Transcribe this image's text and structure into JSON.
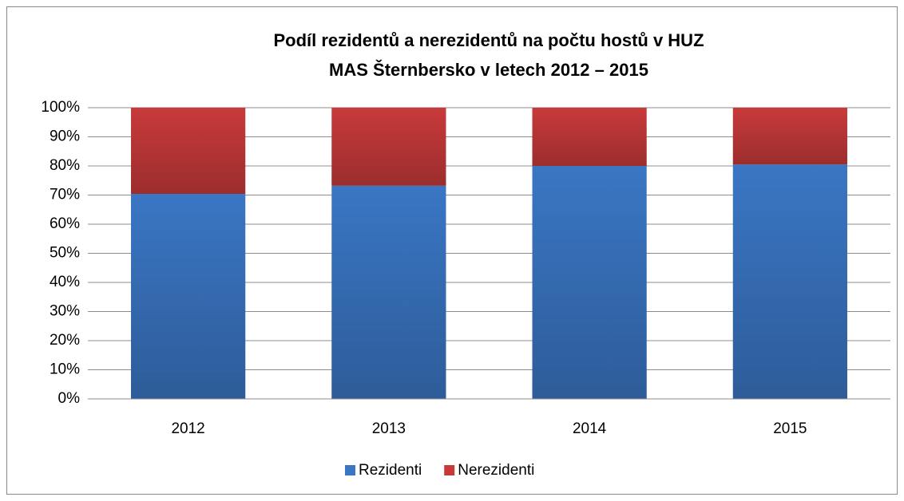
{
  "chart_data": {
    "type": "stacked_bar",
    "title": [
      "Podíl rezidentů a nerezidentů na počtu hostů v HUZ",
      "MAS Šternbersko v letech 2012 – 2015"
    ],
    "categories": [
      "2012",
      "2013",
      "2014",
      "2015"
    ],
    "series": [
      {
        "name": "Rezidenti",
        "color": "#3a76c4",
        "values": [
          70.4,
          73.2,
          80.0,
          80.5
        ]
      },
      {
        "name": "Nerezidenti",
        "color": "#c83a3a",
        "values": [
          29.6,
          26.8,
          20.0,
          19.5
        ]
      }
    ],
    "ylim": [
      0,
      100
    ],
    "yticks": [
      {
        "value": 0,
        "label": "0%"
      },
      {
        "value": 10,
        "label": "10%"
      },
      {
        "value": 20,
        "label": "20%"
      },
      {
        "value": 30,
        "label": "30%"
      },
      {
        "value": 40,
        "label": "40%"
      },
      {
        "value": 50,
        "label": "50%"
      },
      {
        "value": 60,
        "label": "60%"
      },
      {
        "value": 70,
        "label": "70%"
      },
      {
        "value": 80,
        "label": "80%"
      },
      {
        "value": 90,
        "label": "90%"
      },
      {
        "value": 100,
        "label": "100%"
      }
    ],
    "grid": true,
    "legend": "bottom"
  }
}
